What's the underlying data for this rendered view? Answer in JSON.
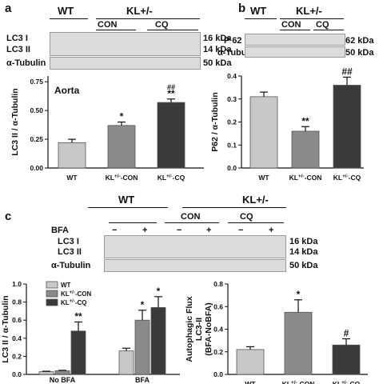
{
  "panels": {
    "a": {
      "letter": "a",
      "header": {
        "wt": "WT",
        "kl": "KL+/-",
        "con": "CON",
        "cq": "CQ"
      },
      "blots": [
        {
          "label": "LC3 I",
          "size": "16 kDa"
        },
        {
          "label": "LC3 II",
          "size": "14 kDa"
        },
        {
          "label": "α-Tubulin",
          "size": "50 kDa"
        }
      ]
    },
    "b": {
      "letter": "b",
      "header": {
        "wt": "WT",
        "kl": "KL+/-",
        "con": "CON",
        "cq": "CQ"
      },
      "blots": [
        {
          "label": "P 62",
          "size": "62 kDa"
        },
        {
          "label": "α-Tubulin",
          "size": "50 kDa"
        }
      ]
    },
    "c": {
      "letter": "c",
      "header": {
        "wt": "WT",
        "kl": "KL+/-",
        "con": "CON",
        "cq": "CQ",
        "bfa": "BFA",
        "minus": "−",
        "plus": "+"
      },
      "blots": [
        {
          "label": "LC3 I",
          "size": "16 kDa"
        },
        {
          "label": "LC3 II",
          "size": "14 kDa"
        },
        {
          "label": "α-Tubulin",
          "size": "50 kDa"
        }
      ]
    }
  },
  "chart_data": [
    {
      "id": "a",
      "type": "bar",
      "title": "Aorta",
      "ylabel": "LC3 II / α-Tubulin",
      "categories": [
        "WT",
        "KL+/--CON",
        "KL+/--CQ"
      ],
      "values": [
        0.22,
        0.37,
        0.57
      ],
      "errors": [
        0.03,
        0.03,
        0.03
      ],
      "annotations": [
        "",
        "*",
        "**"
      ],
      "annotations2": [
        "",
        "",
        "##"
      ],
      "colors": [
        "#c8c8c8",
        "#8a8a8a",
        "#3a3a3a"
      ],
      "ylim": [
        0,
        0.8
      ],
      "yticks": [
        "0.00",
        "0.25",
        "0.50",
        "0.75"
      ],
      "grid": false
    },
    {
      "id": "b",
      "type": "bar",
      "ylabel": "P62 / α-Tubulin",
      "categories": [
        "WT",
        "KL+/--CON",
        "KL+/--CQ"
      ],
      "values": [
        0.31,
        0.16,
        0.36
      ],
      "errors": [
        0.02,
        0.02,
        0.035
      ],
      "annotations": [
        "",
        "**",
        "##"
      ],
      "colors": [
        "#c8c8c8",
        "#8a8a8a",
        "#3a3a3a"
      ],
      "ylim": [
        0,
        0.4
      ],
      "yticks": [
        "0.0",
        "0.1",
        "0.2",
        "0.3",
        "0.4"
      ],
      "grid": false
    },
    {
      "id": "c-left",
      "type": "bar",
      "ylabel": "LC3 II / α-Tubulin",
      "categories": [
        "No BFA",
        "BFA"
      ],
      "series": [
        {
          "name": "WT",
          "values": [
            0.03,
            0.26
          ],
          "errors": [
            0.005,
            0.03
          ],
          "annotations": [
            "",
            ""
          ]
        },
        {
          "name": "KL+/--CON",
          "values": [
            0.04,
            0.6
          ],
          "errors": [
            0.005,
            0.11
          ],
          "annotations": [
            "",
            "*"
          ]
        },
        {
          "name": "KL+/--CQ",
          "values": [
            0.48,
            0.74
          ],
          "errors": [
            0.1,
            0.12
          ],
          "annotations": [
            "**",
            "*"
          ]
        }
      ],
      "colors": [
        "#c8c8c8",
        "#8a8a8a",
        "#3a3a3a"
      ],
      "ylim": [
        0,
        1.0
      ],
      "yticks": [
        "0.0",
        "0.2",
        "0.4",
        "0.6",
        "0.8",
        "1.0"
      ],
      "legend": "top-left",
      "grid": false
    },
    {
      "id": "c-right",
      "type": "bar",
      "ylabel": "Autophagic Flux LC3-II (BFA-NoBFA)",
      "categories": [
        "WT",
        "KL+/--CON",
        "KL+/--CQ"
      ],
      "values": [
        0.22,
        0.55,
        0.26
      ],
      "errors": [
        0.025,
        0.11,
        0.055
      ],
      "annotations": [
        "",
        "*",
        "#"
      ],
      "colors": [
        "#c8c8c8",
        "#8a8a8a",
        "#3a3a3a"
      ],
      "ylim": [
        0,
        0.8
      ],
      "yticks": [
        "0.0",
        "0.2",
        "0.4",
        "0.6",
        "0.8"
      ],
      "grid": false
    }
  ]
}
